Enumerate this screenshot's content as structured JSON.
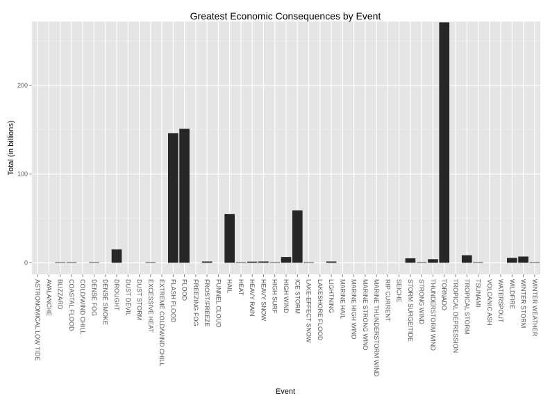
{
  "chart_data": {
    "type": "bar",
    "title": "Greatest Economic Consequences by Event",
    "xlabel": "Event",
    "ylabel": "Total (in billions)",
    "ylim": [
      -13,
      272
    ],
    "yticks": [
      0,
      100,
      200
    ],
    "grid": true,
    "categories": [
      "ASTRONOMICAL LOW TIDE",
      "AVALANCHE",
      "BLIZZARD",
      "COASTAL FLOOD",
      "COLD/WIND CHILL",
      "DENSE FOG",
      "DENSE SMOKE",
      "DROUGHT",
      "DUST DEVIL",
      "DUST STORM",
      "EXCESSIVE HEAT",
      "EXTREME COLD/WIND CHILL",
      "FLASH FLOOD",
      "FLOOD",
      "FREEZING FOG",
      "FROST/FREEZE",
      "FUNNEL CLOUD",
      "HAIL",
      "HEAT",
      "HEAVY RAIN",
      "HEAVY SNOW",
      "HIGH SURF",
      "HIGH WIND",
      "ICE STORM",
      "LAKE-EFFECT SNOW",
      "LAKESHORE FLOOD",
      "LIGHTNING",
      "MARINE HAIL",
      "MARINE HIGH WIND",
      "MARINE STRONG WIND",
      "MARINE THUNDERSTORM WIND",
      "RIP CURRENT",
      "SEICHE",
      "STORM SURGE/TIDE",
      "STRONG WIND",
      "THUNDERSTORM WIND",
      "TORNADO",
      "TROPICAL DEPRESSION",
      "TROPICAL STORM",
      "TSUNAMI",
      "VOLCANIC ASH",
      "WATERSPOUT",
      "WILDFIRE",
      "WINTER STORM",
      "WINTER WEATHER"
    ],
    "values": [
      0,
      0,
      0.5,
      0.4,
      0,
      0.3,
      0,
      15,
      0,
      0,
      0.3,
      0,
      146,
      151,
      0,
      1.5,
      0,
      55,
      0.1,
      1.3,
      1.5,
      0.1,
      6.5,
      59,
      0.1,
      0,
      1.5,
      0,
      0,
      0,
      0,
      0,
      0,
      5,
      0.2,
      4,
      271,
      0,
      8.5,
      0.2,
      0,
      0,
      5.5,
      7,
      0.1
    ]
  }
}
